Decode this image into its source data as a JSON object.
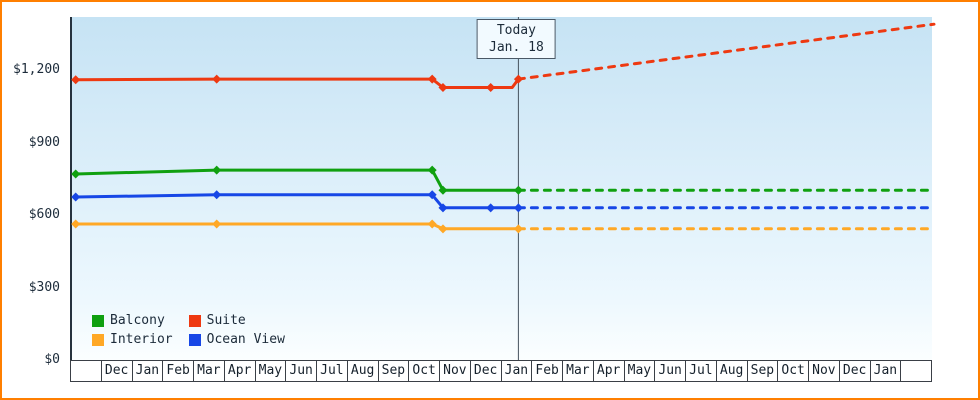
{
  "today_box": {
    "line1": "Today",
    "line2": "Jan. 18"
  },
  "y_axis": {
    "ticks": [
      {
        "label": "$1,200",
        "value": 1200
      },
      {
        "label": "$900",
        "value": 900
      },
      {
        "label": "$600",
        "value": 600
      },
      {
        "label": "$300",
        "value": 300
      },
      {
        "label": "$0",
        "value": 0
      }
    ]
  },
  "x_axis": {
    "cells": [
      "",
      "Dec",
      "Jan",
      "Feb",
      "Mar",
      "Apr",
      "May",
      "Jun",
      "Jul",
      "Aug",
      "Sep",
      "Oct",
      "Nov",
      "Dec",
      "Jan",
      "Feb",
      "Mar",
      "Apr",
      "May",
      "Jun",
      "Jul",
      "Aug",
      "Sep",
      "Oct",
      "Nov",
      "Dec",
      "Jan",
      ""
    ]
  },
  "legend": {
    "items": [
      {
        "label": "Balcony",
        "color": "#10a010"
      },
      {
        "label": "Suite",
        "color": "#ee3911"
      },
      {
        "label": "Interior",
        "color": "#ffa826"
      },
      {
        "label": "Ocean View",
        "color": "#1747e6"
      }
    ]
  },
  "colors": {
    "frame_border": "#ff7f00",
    "today_line": "#46525e",
    "axis_line": "#26323e",
    "suite": "#ee3911",
    "balcony": "#10a010",
    "interior": "#ffa826",
    "ocean_view": "#1747e6"
  },
  "chart_data": {
    "type": "line",
    "title": "",
    "xlabel": "",
    "ylabel": "",
    "ylim": [
      0,
      1420
    ],
    "y_ticks": [
      0,
      300,
      600,
      900,
      1200
    ],
    "x_cells_total": 28,
    "x_unit": "month cell index; 0 = chart left edge; cell labels listed in x_axis.cells",
    "today": {
      "cell_index": 14.5,
      "date_label": "Jan. 18"
    },
    "series": [
      {
        "name": "Interior",
        "color": "#ffa826",
        "history": [
          [
            0.12,
            563
          ],
          [
            4.7,
            563
          ],
          [
            11.7,
            563
          ],
          [
            12.05,
            543
          ],
          [
            14.5,
            543
          ]
        ],
        "markers": [
          [
            0.12,
            563
          ],
          [
            4.7,
            563
          ],
          [
            11.7,
            563
          ],
          [
            12.05,
            543
          ],
          [
            14.5,
            543
          ]
        ],
        "forecast": [
          [
            14.5,
            543
          ],
          [
            28,
            543
          ]
        ]
      },
      {
        "name": "Ocean View",
        "color": "#1747e6",
        "history": [
          [
            0.12,
            675
          ],
          [
            4.7,
            684
          ],
          [
            11.7,
            684
          ],
          [
            12.05,
            630
          ],
          [
            13.6,
            630
          ],
          [
            14.5,
            630
          ]
        ],
        "markers": [
          [
            0.12,
            675
          ],
          [
            4.7,
            684
          ],
          [
            11.7,
            684
          ],
          [
            12.05,
            630
          ],
          [
            13.6,
            630
          ],
          [
            14.5,
            630
          ]
        ],
        "forecast": [
          [
            14.5,
            630
          ],
          [
            28,
            630
          ]
        ]
      },
      {
        "name": "Balcony",
        "color": "#10a010",
        "history": [
          [
            0.12,
            770
          ],
          [
            4.7,
            786
          ],
          [
            11.7,
            786
          ],
          [
            12.05,
            703
          ],
          [
            14.5,
            703
          ]
        ],
        "markers": [
          [
            0.12,
            770
          ],
          [
            4.7,
            786
          ],
          [
            11.7,
            786
          ],
          [
            12.05,
            703
          ],
          [
            14.5,
            703
          ]
        ],
        "forecast": [
          [
            14.5,
            703
          ],
          [
            28,
            703
          ]
        ]
      },
      {
        "name": "Suite",
        "color": "#ee3911",
        "history": [
          [
            0.12,
            1160
          ],
          [
            4.7,
            1163
          ],
          [
            11.7,
            1163
          ],
          [
            12.05,
            1128
          ],
          [
            13.6,
            1128
          ],
          [
            14.3,
            1128
          ],
          [
            14.5,
            1163
          ]
        ],
        "markers": [
          [
            0.12,
            1160
          ],
          [
            4.7,
            1163
          ],
          [
            11.7,
            1163
          ],
          [
            12.05,
            1128
          ],
          [
            13.6,
            1128
          ],
          [
            14.5,
            1163
          ]
        ],
        "forecast": [
          [
            14.5,
            1163
          ],
          [
            28,
            1390
          ]
        ]
      }
    ]
  }
}
